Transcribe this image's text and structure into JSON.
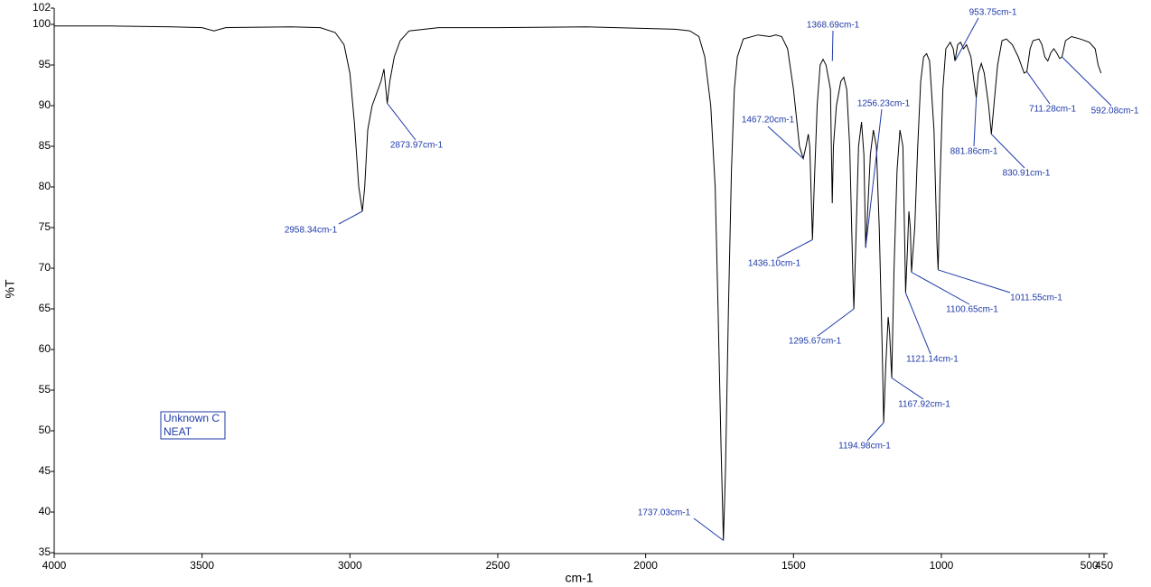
{
  "chart_data": {
    "type": "line",
    "xlabel": "cm-1",
    "ylabel": "%T",
    "xlim": [
      4000,
      450
    ],
    "ylim": [
      35,
      102
    ],
    "xticks": [
      4000,
      3500,
      3000,
      2500,
      2000,
      1500,
      1000,
      500,
      450
    ],
    "yticks": [
      35,
      40,
      45,
      50,
      55,
      60,
      65,
      70,
      75,
      80,
      85,
      90,
      95,
      100,
      102
    ],
    "legend_box": [
      "Unknown C",
      "NEAT"
    ],
    "series": [
      {
        "name": "Unknown C",
        "color": "#000000",
        "x": [
          4000,
          3800,
          3600,
          3500,
          3460,
          3420,
          3200,
          3100,
          3050,
          3020,
          3000,
          2985,
          2970,
          2958,
          2950,
          2940,
          2925,
          2910,
          2895,
          2885,
          2874,
          2865,
          2850,
          2830,
          2800,
          2700,
          2500,
          2200,
          2100,
          2000,
          1900,
          1850,
          1820,
          1800,
          1780,
          1765,
          1755,
          1745,
          1737,
          1730,
          1720,
          1710,
          1700,
          1690,
          1670,
          1620,
          1580,
          1560,
          1540,
          1520,
          1500,
          1480,
          1467,
          1458,
          1450,
          1445,
          1436,
          1430,
          1420,
          1410,
          1400,
          1390,
          1380,
          1375,
          1369,
          1365,
          1355,
          1340,
          1330,
          1320,
          1310,
          1300,
          1296,
          1290,
          1280,
          1270,
          1262,
          1256,
          1248,
          1240,
          1230,
          1220,
          1210,
          1200,
          1195,
          1188,
          1180,
          1175,
          1168,
          1160,
          1150,
          1140,
          1130,
          1125,
          1121,
          1115,
          1110,
          1105,
          1101,
          1090,
          1080,
          1070,
          1060,
          1050,
          1040,
          1025,
          1015,
          1011,
          1005,
          995,
          985,
          970,
          960,
          954,
          945,
          935,
          925,
          915,
          900,
          890,
          882,
          875,
          865,
          855,
          840,
          831,
          820,
          810,
          795,
          780,
          760,
          740,
          720,
          711,
          700,
          690,
          670,
          660,
          650,
          640,
          630,
          620,
          610,
          600,
          592,
          580,
          560,
          530,
          500,
          480,
          470,
          460
        ],
        "values": [
          99.8,
          99.8,
          99.7,
          99.6,
          99.2,
          99.6,
          99.7,
          99.6,
          99.0,
          97.5,
          94,
          88,
          80,
          77,
          80,
          87,
          90,
          91.5,
          93,
          94.5,
          90.3,
          93,
          96,
          98,
          99.2,
          99.6,
          99.6,
          99.7,
          99.6,
          99.5,
          99.4,
          99.2,
          98.5,
          96,
          90,
          80,
          65,
          48,
          36.5,
          45,
          65,
          82,
          92,
          96,
          98.2,
          98.7,
          98.5,
          98.7,
          98.5,
          97,
          92,
          85,
          83.5,
          85,
          86.5,
          85,
          73.5,
          80,
          90,
          95,
          95.7,
          95,
          93,
          92,
          78,
          85,
          90,
          93,
          93.5,
          92,
          85,
          70,
          65,
          72,
          85,
          88,
          84,
          72.5,
          78,
          84,
          87,
          85,
          75,
          60,
          51,
          58,
          64,
          62,
          56.5,
          70,
          82,
          87,
          85,
          75,
          67,
          72,
          77,
          75,
          69.5,
          75,
          85,
          93,
          96,
          96.4,
          95.5,
          87,
          73,
          69.8,
          80,
          92,
          97,
          97.8,
          97,
          95.5,
          97.5,
          97.8,
          97,
          97.5,
          96,
          93,
          91,
          94,
          95.2,
          94,
          90,
          86.5,
          91,
          95,
          98,
          98.2,
          97.5,
          96,
          94,
          94.2,
          97,
          98,
          98.2,
          97.5,
          96,
          95.5,
          96.5,
          97,
          96.5,
          95.8,
          96,
          98,
          98.5,
          98.2,
          97.8,
          97,
          95,
          94
        ]
      }
    ],
    "annotations": [
      {
        "text": "2958.34cm-1",
        "x": 2958.34,
        "y": 77
      },
      {
        "text": "2873.97cm-1",
        "x": 2873.97,
        "y": 90.3
      },
      {
        "text": "1737.03cm-1",
        "x": 1737.03,
        "y": 36.5
      },
      {
        "text": "1467.20cm-1",
        "x": 1467.2,
        "y": 83.5
      },
      {
        "text": "1436.10cm-1",
        "x": 1436.1,
        "y": 73.5
      },
      {
        "text": "1368.69cm-1",
        "x": 1368.69,
        "y": 95.5
      },
      {
        "text": "1256.23cm-1",
        "x": 1256.23,
        "y": 72.5
      },
      {
        "text": "1295.67cm-1",
        "x": 1295.67,
        "y": 65
      },
      {
        "text": "1194.98cm-1",
        "x": 1194.98,
        "y": 51
      },
      {
        "text": "1167.92cm-1",
        "x": 1167.92,
        "y": 56.5
      },
      {
        "text": "1121.14cm-1",
        "x": 1121.14,
        "y": 67
      },
      {
        "text": "1100.65cm-1",
        "x": 1100.65,
        "y": 69.5
      },
      {
        "text": "1011.55cm-1",
        "x": 1011.55,
        "y": 69.8
      },
      {
        "text": "953.75cm-1",
        "x": 953.75,
        "y": 95.5
      },
      {
        "text": "881.86cm-1",
        "x": 881.86,
        "y": 91
      },
      {
        "text": "830.91cm-1",
        "x": 830.91,
        "y": 86.5
      },
      {
        "text": "711.28cm-1",
        "x": 711.28,
        "y": 94.2
      },
      {
        "text": "592.08cm-1",
        "x": 592.08,
        "y": 96
      }
    ]
  }
}
